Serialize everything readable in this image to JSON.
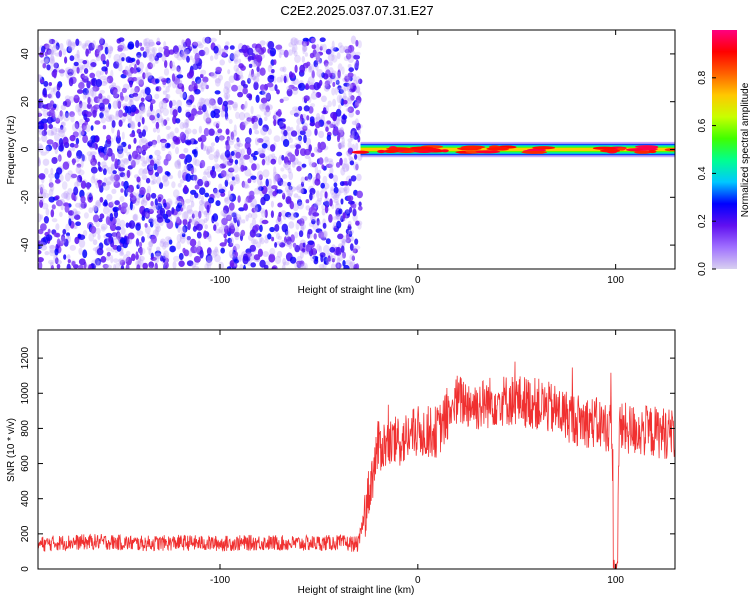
{
  "title": "C2E2.2025.037.07.31.E27",
  "chart_data": [
    {
      "type": "heatmap",
      "xlabel": "Height of straight line (km)",
      "ylabel": "Frequency (Hz)",
      "xlim": [
        -192,
        130
      ],
      "ylim": [
        -50,
        50
      ],
      "x_ticks": [
        -100,
        0,
        100
      ],
      "y_ticks": [
        -40,
        -20,
        0,
        20,
        40
      ],
      "colorbar": {
        "label": "Normalized spectral amplitude",
        "range": [
          0,
          1
        ],
        "ticks": [
          "0.0",
          "0.2",
          "0.4",
          "0.6",
          "0.8"
        ],
        "colormap": [
          "#d8d0f0",
          "#a070ff",
          "#6010f0",
          "#0000ff",
          "#00c8ff",
          "#00ff90",
          "#40ff00",
          "#c8ff00",
          "#ffc800",
          "#ff6000",
          "#ff0000",
          "#ff0080"
        ]
      },
      "regions": [
        {
          "name": "noise",
          "x_range": [
            -192,
            -29
          ],
          "y_range": [
            -50,
            46
          ],
          "amplitude_range": [
            0.0,
            0.12
          ]
        },
        {
          "name": "signal band",
          "x_range": [
            -29,
            130
          ],
          "center_frequency": [
            -2,
            2
          ],
          "bandwidth_hz": 5,
          "peak_amplitude": 0.95
        }
      ]
    },
    {
      "type": "line",
      "xlabel": "Height of straight line (km)",
      "ylabel": "SNR (10 * v/v)",
      "xlim": [
        -192,
        130
      ],
      "ylim": [
        0,
        1360
      ],
      "x_ticks": [
        -100,
        0,
        100
      ],
      "y_ticks": [
        0,
        200,
        400,
        600,
        800,
        1000,
        1200
      ],
      "color": "#f03030",
      "series": [
        {
          "x": [
            -192,
            -180,
            -160,
            -140,
            -120,
            -100,
            -80,
            -60,
            -40,
            -30,
            -20,
            -10,
            0,
            10,
            20,
            30,
            40,
            50,
            60,
            70,
            80,
            90,
            98,
            100,
            102,
            110,
            120,
            130
          ],
          "y": [
            140,
            150,
            155,
            145,
            150,
            145,
            150,
            145,
            150,
            140,
            700,
            720,
            780,
            780,
            960,
            930,
            960,
            960,
            940,
            900,
            850,
            830,
            800,
            20,
            800,
            790,
            780,
            770
          ]
        }
      ]
    }
  ]
}
